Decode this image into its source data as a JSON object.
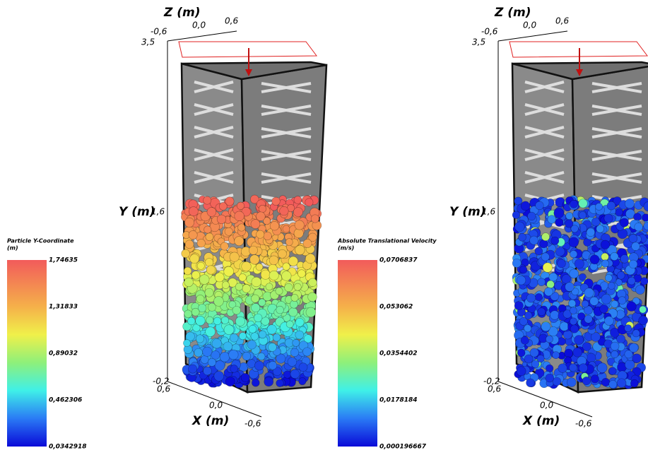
{
  "panels": [
    {
      "axes": {
        "z_label": "Z (m)",
        "z_ticks": [
          "-0,6",
          "0,0",
          "0,6"
        ],
        "y_label": "Y (m)",
        "y_ticks": [
          "3,5",
          "1,6",
          "-0,2"
        ],
        "x_label": "X (m)",
        "x_ticks": [
          "0,6",
          "0,0",
          "-0,6"
        ]
      },
      "colorbar": {
        "title": "Particle Y-Coordinate",
        "unit": "(m)",
        "labels": [
          "1,74635",
          "1,31833",
          "0,89032",
          "0,462306",
          "0,0342918"
        ]
      }
    },
    {
      "axes": {
        "z_label": "Z (m)",
        "z_ticks": [
          "-0,6",
          "0,0",
          "0,6"
        ],
        "y_label": "Y (m)",
        "y_ticks": [
          "3,5",
          "1,6",
          "-0,2"
        ],
        "x_label": "X (m)",
        "x_ticks": [
          "0,6",
          "0,0",
          "-0,6"
        ]
      },
      "colorbar": {
        "title": "Absolute Translational Velocity",
        "unit": "(m/s)",
        "labels": [
          "0,0706837",
          "0,053062",
          "0,0354402",
          "0,0178184",
          "0,000196667"
        ]
      }
    }
  ]
}
